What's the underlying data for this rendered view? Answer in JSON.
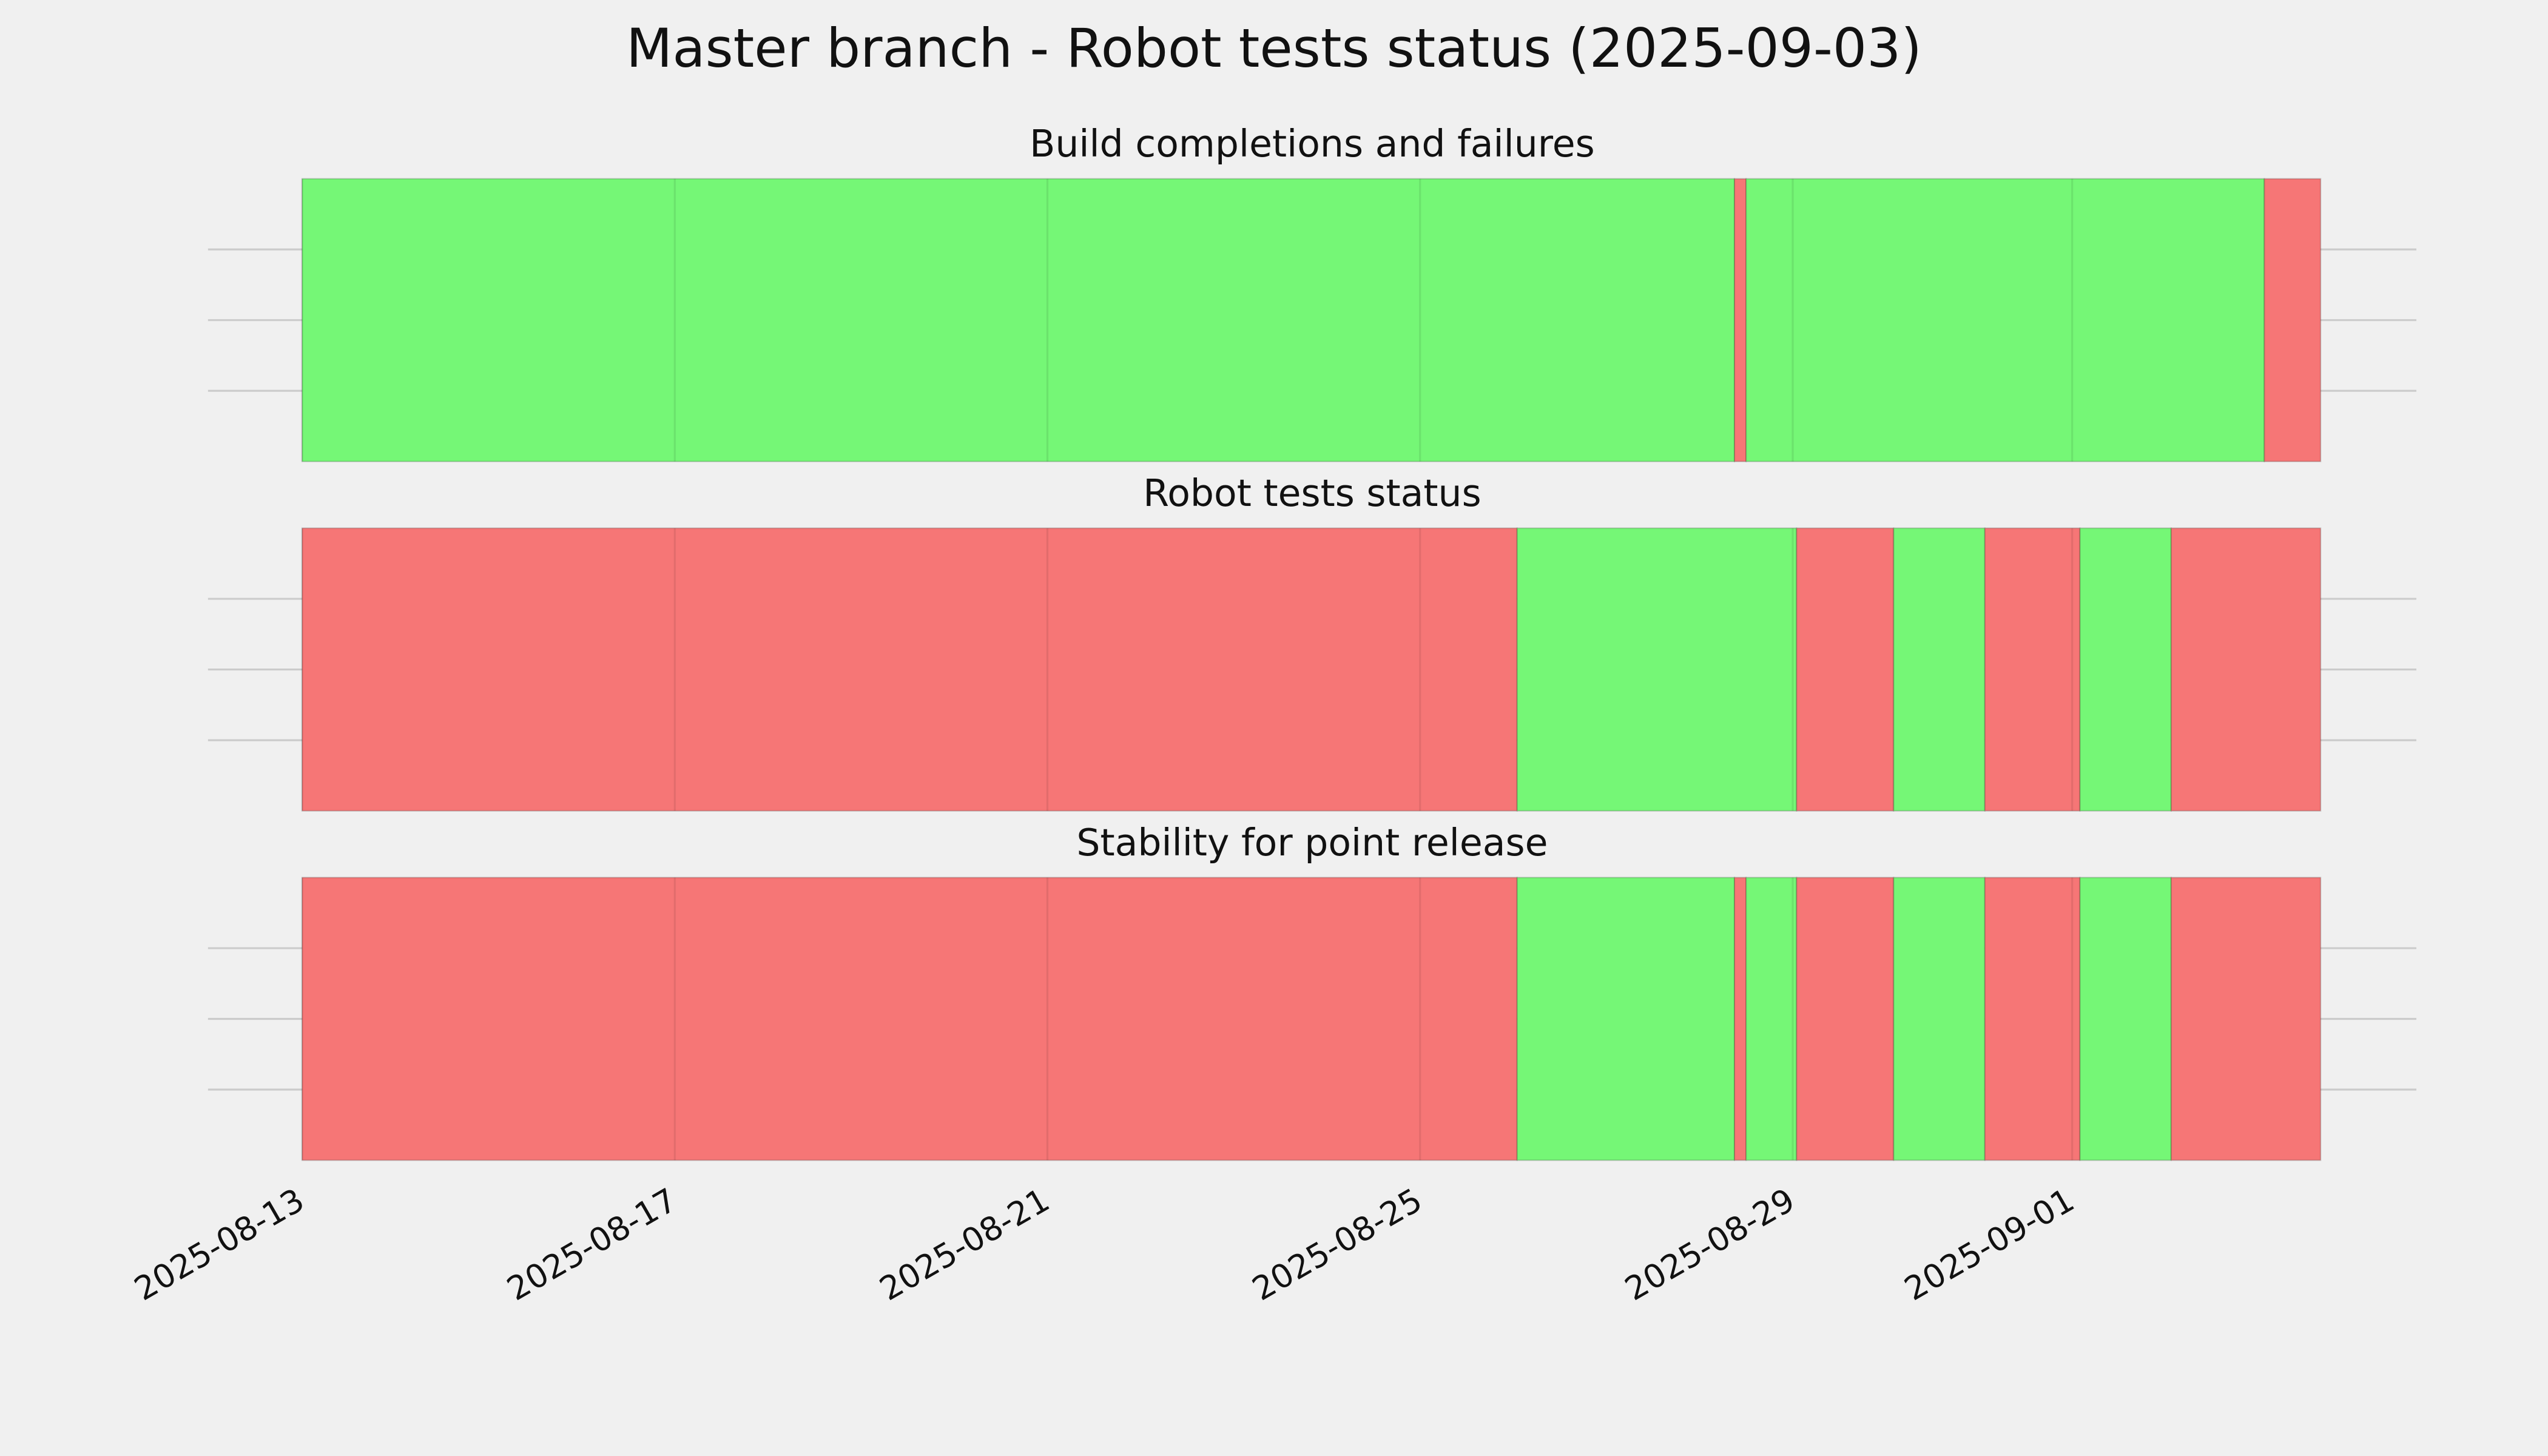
{
  "title": "Master branch - Robot tests status (2025-09-03)",
  "chart_data": [
    {
      "type": "span",
      "title": "Build completions and failures",
      "x": [
        "2025-08-13T00:00",
        "2025-08-28T09:00",
        "2025-08-28T12:00",
        "2025-09-03T01:30",
        "2025-09-03T16:00"
      ],
      "colors": [
        "#75f776",
        "#f67676",
        "#75f776",
        "#f67676"
      ],
      "xlim": [
        "2025-08-11T23:45",
        "2025-09-04T16:40"
      ],
      "xticks": [
        "2025-08-13",
        "2025-08-17",
        "2025-08-21",
        "2025-08-25",
        "2025-08-29",
        "2025-09-01"
      ],
      "ylim": [
        0,
        1
      ],
      "yticks": [
        0.25,
        0.5,
        0.75
      ],
      "grid": true
    },
    {
      "type": "span",
      "title": "Robot tests status",
      "x": [
        "2025-08-13T00:00",
        "2025-08-26T01:00",
        "2025-08-29T01:00",
        "2025-08-30T02:00",
        "2025-08-31T01:30",
        "2025-09-01T02:00",
        "2025-09-02T01:30",
        "2025-09-03T16:00"
      ],
      "colors": [
        "#f67676",
        "#75f776",
        "#f67676",
        "#75f776",
        "#f67676",
        "#75f776",
        "#f67676"
      ],
      "xlim": [
        "2025-08-11T23:45",
        "2025-09-04T16:40"
      ],
      "xticks": [
        "2025-08-13",
        "2025-08-17",
        "2025-08-21",
        "2025-08-25",
        "2025-08-29",
        "2025-09-01"
      ],
      "ylim": [
        0,
        1
      ],
      "yticks": [
        0.25,
        0.5,
        0.75
      ],
      "grid": true
    },
    {
      "type": "span",
      "title": "Stability for point release",
      "x": [
        "2025-08-13T00:00",
        "2025-08-26T01:00",
        "2025-08-28T09:00",
        "2025-08-28T12:00",
        "2025-08-29T01:00",
        "2025-08-30T02:00",
        "2025-08-31T01:30",
        "2025-09-01T02:00",
        "2025-09-02T01:30",
        "2025-09-03T16:00"
      ],
      "colors": [
        "#f67676",
        "#75f776",
        "#f67676",
        "#75f776",
        "#f67676",
        "#75f776",
        "#f67676",
        "#75f776",
        "#f67676"
      ],
      "xlim": [
        "2025-08-11T23:45",
        "2025-09-04T16:40"
      ],
      "xticks": [
        "2025-08-13",
        "2025-08-17",
        "2025-08-21",
        "2025-08-25",
        "2025-08-29",
        "2025-09-01"
      ],
      "ylim": [
        0,
        1
      ],
      "yticks": [
        0.25,
        0.5,
        0.75
      ],
      "grid": true
    }
  ]
}
